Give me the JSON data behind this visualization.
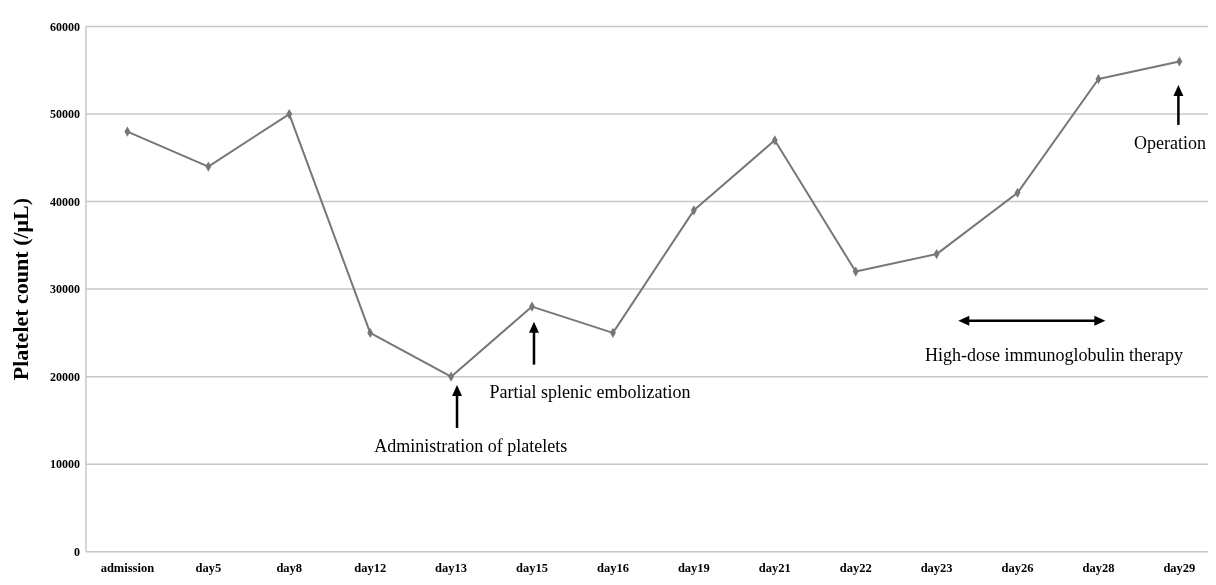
{
  "chart_data": {
    "type": "line",
    "ylabel": "Platelet count (/μL)",
    "categories": [
      "admission",
      "day5",
      "day8",
      "day12",
      "day13",
      "day15",
      "day16",
      "day19",
      "day21",
      "day22",
      "day23",
      "day26",
      "day28",
      "day29"
    ],
    "series": [
      {
        "color": "#777777",
        "values": [
          48000,
          44000,
          50000,
          25000,
          20000,
          28000,
          25000,
          39000,
          47000,
          32000,
          34000,
          41000,
          54000,
          56000
        ]
      }
    ],
    "ylim": [
      0,
      60000
    ],
    "yticks": [
      0,
      10000,
      20000,
      30000,
      40000,
      50000,
      60000
    ],
    "grid": "y",
    "marker": "diamond",
    "line_style": "solid",
    "annotations": [
      "Administration of platelets",
      "Partial splenic embolization",
      "High-dose immunoglobulin therapy",
      "Operation"
    ]
  }
}
